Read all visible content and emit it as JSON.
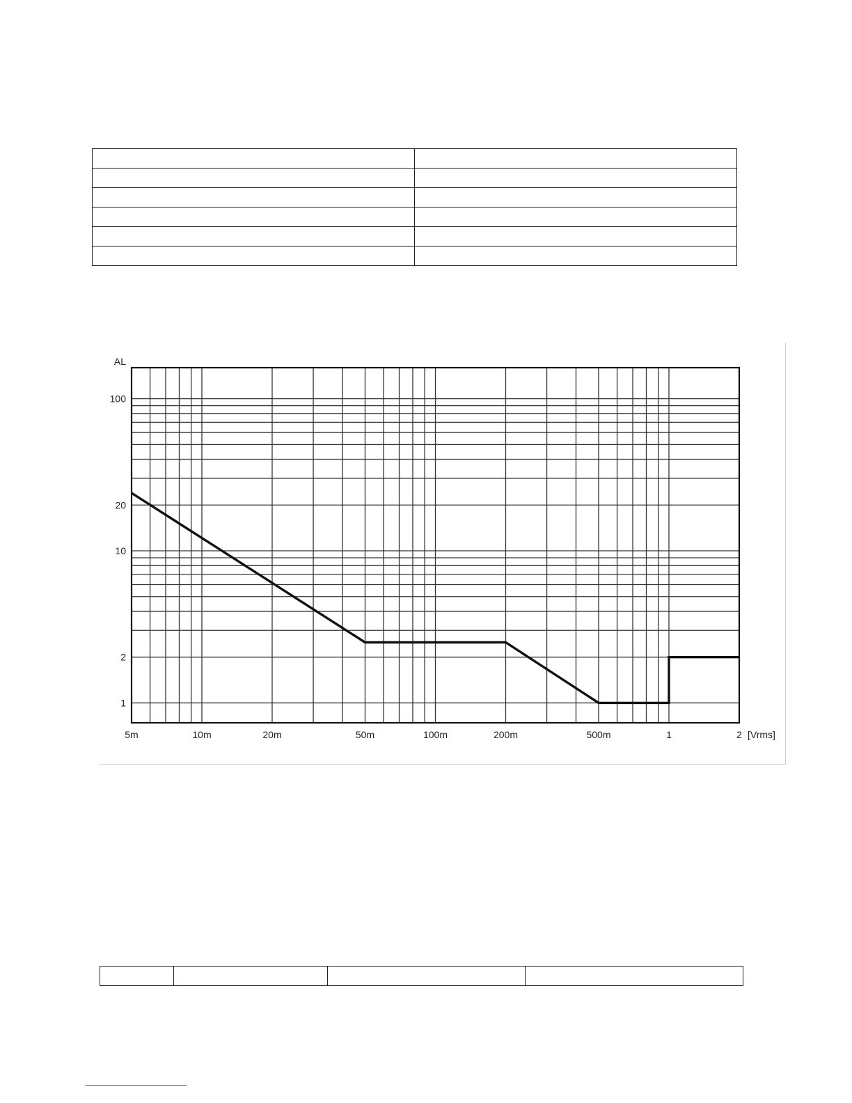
{
  "table_top": {
    "rows": 6,
    "cols": 2,
    "cells": [
      [
        "",
        ""
      ],
      [
        "",
        ""
      ],
      [
        "",
        ""
      ],
      [
        "",
        ""
      ],
      [
        "",
        ""
      ],
      [
        "",
        ""
      ]
    ]
  },
  "chart_data": {
    "type": "line",
    "title": "",
    "xlabel": "[Vrms]",
    "ylabel": "AL",
    "x_scale": "log",
    "y_scale": "log",
    "xlim": [
      0.005,
      2
    ],
    "ylim": [
      0.74,
      160
    ],
    "x_ticks": [
      {
        "value": 0.005,
        "label": "5m"
      },
      {
        "value": 0.01,
        "label": "10m"
      },
      {
        "value": 0.02,
        "label": "20m"
      },
      {
        "value": 0.05,
        "label": "50m"
      },
      {
        "value": 0.1,
        "label": "100m"
      },
      {
        "value": 0.2,
        "label": "200m"
      },
      {
        "value": 0.5,
        "label": "500m"
      },
      {
        "value": 1,
        "label": "1"
      },
      {
        "value": 2,
        "label": "2"
      }
    ],
    "y_ticks": [
      {
        "value": 1,
        "label": "1"
      },
      {
        "value": 2,
        "label": "2"
      },
      {
        "value": 10,
        "label": "10"
      },
      {
        "value": 20,
        "label": "20"
      },
      {
        "value": 100,
        "label": "100"
      }
    ],
    "grid": true,
    "x_gridlines": [
      0.005,
      0.006,
      0.007,
      0.008,
      0.009,
      0.01,
      0.02,
      0.03,
      0.04,
      0.05,
      0.06,
      0.07,
      0.08,
      0.09,
      0.1,
      0.2,
      0.3,
      0.4,
      0.5,
      0.6,
      0.7,
      0.8,
      0.9,
      1,
      2
    ],
    "y_gridlines": [
      1,
      2,
      3,
      4,
      5,
      6,
      7,
      8,
      9,
      10,
      20,
      30,
      40,
      50,
      60,
      70,
      80,
      90,
      100
    ],
    "series": [
      {
        "values_xy": [
          [
            0.005,
            24
          ],
          [
            0.05,
            2.5
          ],
          [
            0.2,
            2.5
          ],
          [
            0.5,
            1
          ],
          [
            1,
            1
          ],
          [
            1,
            2
          ],
          [
            2,
            2
          ]
        ]
      }
    ],
    "color": "#111111"
  },
  "table_bottom": {
    "rows": 1,
    "cols": 4,
    "cells": [
      [
        "",
        "",
        "",
        ""
      ]
    ]
  }
}
